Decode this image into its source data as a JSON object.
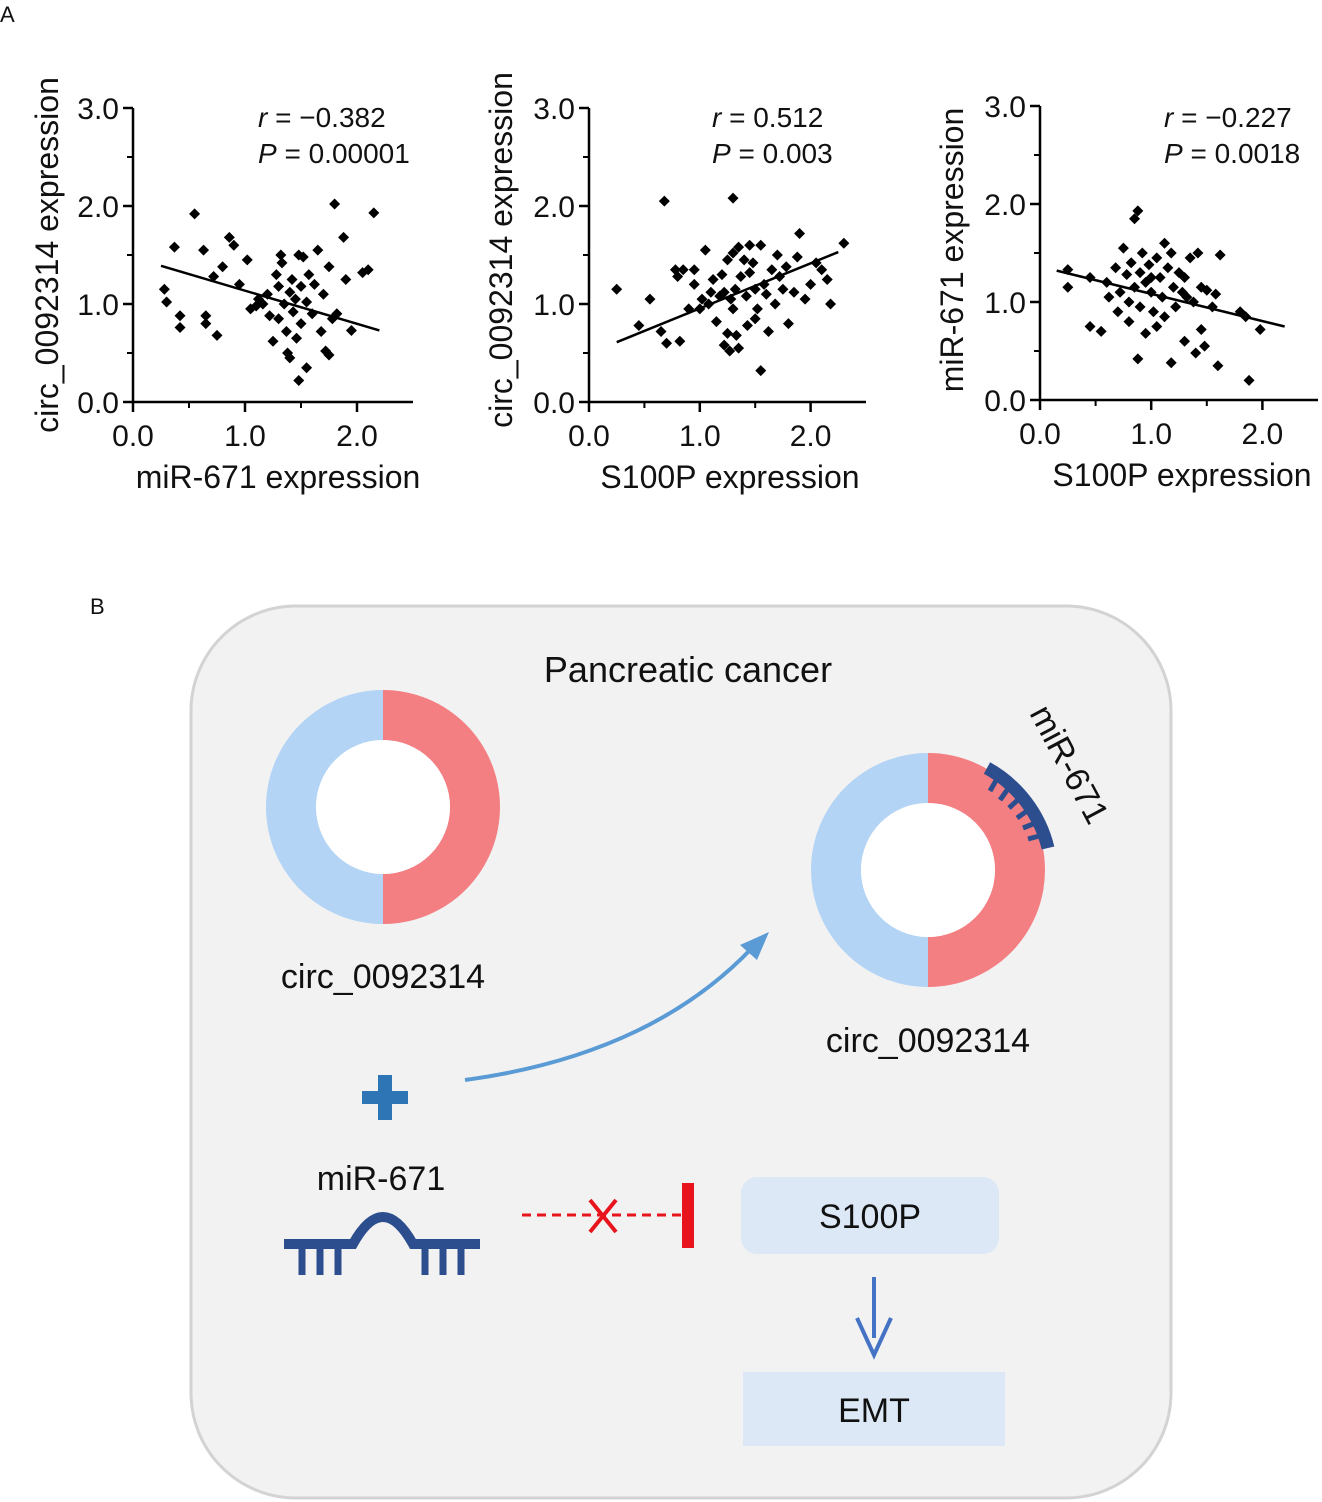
{
  "panel_labels": {
    "a": "A",
    "b": "B"
  },
  "chart_data": [
    {
      "type": "scatter",
      "title": "",
      "xlabel": "miR-671 expression",
      "ylabel": "circ_0092314 expression",
      "xlim": [
        0,
        2.5
      ],
      "ylim": [
        0,
        3
      ],
      "xticks": [
        "0.0",
        "1.0",
        "2.0"
      ],
      "yticks": [
        "0.0",
        "1.0",
        "2.0",
        "3.0"
      ],
      "r_label": "r",
      "r_value": "= −0.382",
      "p_label": "P",
      "p_value": "= 0.00001",
      "fit": {
        "x": [
          0.25,
          2.2
        ],
        "y": [
          1.39,
          0.73
        ]
      },
      "points": [
        [
          0.28,
          1.15
        ],
        [
          0.3,
          1.02
        ],
        [
          0.37,
          1.58
        ],
        [
          0.42,
          0.88
        ],
        [
          0.42,
          0.76
        ],
        [
          0.55,
          1.92
        ],
        [
          0.63,
          1.55
        ],
        [
          0.65,
          0.88
        ],
        [
          0.65,
          0.8
        ],
        [
          0.72,
          1.28
        ],
        [
          0.75,
          0.68
        ],
        [
          0.8,
          1.38
        ],
        [
          0.86,
          1.68
        ],
        [
          0.9,
          1.6
        ],
        [
          0.95,
          1.2
        ],
        [
          1.02,
          1.45
        ],
        [
          1.05,
          0.95
        ],
        [
          1.1,
          0.98
        ],
        [
          1.12,
          1.05
        ],
        [
          1.16,
          1.0
        ],
        [
          1.2,
          1.1
        ],
        [
          1.22,
          0.88
        ],
        [
          1.25,
          0.62
        ],
        [
          1.28,
          1.3
        ],
        [
          1.3,
          1.18
        ],
        [
          1.3,
          0.85
        ],
        [
          1.32,
          1.5
        ],
        [
          1.33,
          1.42
        ],
        [
          1.35,
          1.0
        ],
        [
          1.37,
          0.72
        ],
        [
          1.38,
          0.5
        ],
        [
          1.4,
          1.12
        ],
        [
          1.4,
          0.45
        ],
        [
          1.42,
          1.25
        ],
        [
          1.43,
          0.92
        ],
        [
          1.45,
          1.05
        ],
        [
          1.46,
          0.65
        ],
        [
          1.48,
          1.5
        ],
        [
          1.48,
          0.22
        ],
        [
          1.5,
          1.18
        ],
        [
          1.5,
          0.8
        ],
        [
          1.52,
          1.48
        ],
        [
          1.55,
          1.02
        ],
        [
          1.55,
          0.35
        ],
        [
          1.57,
          1.3
        ],
        [
          1.6,
          0.9
        ],
        [
          1.62,
          1.2
        ],
        [
          1.65,
          1.55
        ],
        [
          1.68,
          0.72
        ],
        [
          1.7,
          1.1
        ],
        [
          1.72,
          0.52
        ],
        [
          1.75,
          0.48
        ],
        [
          1.75,
          1.38
        ],
        [
          1.78,
          0.85
        ],
        [
          1.8,
          2.02
        ],
        [
          1.82,
          0.9
        ],
        [
          1.88,
          1.68
        ],
        [
          1.9,
          1.25
        ],
        [
          1.95,
          0.73
        ],
        [
          2.05,
          1.32
        ],
        [
          2.1,
          1.35
        ],
        [
          2.15,
          1.93
        ]
      ]
    },
    {
      "type": "scatter",
      "title": "",
      "xlabel": "S100P expression",
      "ylabel": "circ_0092314 expression",
      "xlim": [
        0,
        2.5
      ],
      "ylim": [
        0,
        3
      ],
      "xticks": [
        "0.0",
        "1.0",
        "2.0"
      ],
      "yticks": [
        "0.0",
        "1.0",
        "2.0",
        "3.0"
      ],
      "r_label": "r",
      "r_value": "= 0.512",
      "p_label": "P",
      "p_value": "= 0.003",
      "fit": {
        "x": [
          0.25,
          2.25
        ],
        "y": [
          0.61,
          1.53
        ]
      },
      "points": [
        [
          0.25,
          1.15
        ],
        [
          0.45,
          0.78
        ],
        [
          0.55,
          1.05
        ],
        [
          0.65,
          0.72
        ],
        [
          0.68,
          2.05
        ],
        [
          0.7,
          0.6
        ],
        [
          0.78,
          1.35
        ],
        [
          0.8,
          1.28
        ],
        [
          0.82,
          0.62
        ],
        [
          0.85,
          1.35
        ],
        [
          0.9,
          0.95
        ],
        [
          0.95,
          1.2
        ],
        [
          0.95,
          1.35
        ],
        [
          1.0,
          0.95
        ],
        [
          1.02,
          1.05
        ],
        [
          1.05,
          1.55
        ],
        [
          1.08,
          1.0
        ],
        [
          1.1,
          1.12
        ],
        [
          1.12,
          1.25
        ],
        [
          1.15,
          0.82
        ],
        [
          1.18,
          1.08
        ],
        [
          1.2,
          1.3
        ],
        [
          1.22,
          1.12
        ],
        [
          1.22,
          0.58
        ],
        [
          1.25,
          1.45
        ],
        [
          1.25,
          0.7
        ],
        [
          1.27,
          0.52
        ],
        [
          1.28,
          1.05
        ],
        [
          1.3,
          2.08
        ],
        [
          1.3,
          1.52
        ],
        [
          1.3,
          0.95
        ],
        [
          1.32,
          1.15
        ],
        [
          1.33,
          0.68
        ],
        [
          1.35,
          1.58
        ],
        [
          1.35,
          0.55
        ],
        [
          1.37,
          1.28
        ],
        [
          1.4,
          1.45
        ],
        [
          1.42,
          1.08
        ],
        [
          1.43,
          0.78
        ],
        [
          1.45,
          1.6
        ],
        [
          1.45,
          1.32
        ],
        [
          1.48,
          1.42
        ],
        [
          1.5,
          1.15
        ],
        [
          1.5,
          0.85
        ],
        [
          1.52,
          0.95
        ],
        [
          1.55,
          0.32
        ],
        [
          1.55,
          1.6
        ],
        [
          1.58,
          1.2
        ],
        [
          1.6,
          1.1
        ],
        [
          1.62,
          0.72
        ],
        [
          1.65,
          1.35
        ],
        [
          1.68,
          1.0
        ],
        [
          1.72,
          1.28
        ],
        [
          1.75,
          1.15
        ],
        [
          1.78,
          1.38
        ],
        [
          1.8,
          0.8
        ],
        [
          1.85,
          1.12
        ],
        [
          1.88,
          1.48
        ],
        [
          1.9,
          1.72
        ],
        [
          2.0,
          1.2
        ],
        [
          2.05,
          1.42
        ],
        [
          2.1,
          1.35
        ],
        [
          2.15,
          1.25
        ],
        [
          2.18,
          1.0
        ],
        [
          2.3,
          1.62
        ],
        [
          1.7,
          1.5
        ],
        [
          1.95,
          1.05
        ]
      ]
    },
    {
      "type": "scatter",
      "title": "",
      "xlabel": "S100P expression",
      "ylabel": "miR-671 expression",
      "xlim": [
        0,
        2.5
      ],
      "ylim": [
        0,
        3
      ],
      "xticks": [
        "0.0",
        "1.0",
        "2.0"
      ],
      "yticks": [
        "0.0",
        "1.0",
        "2.0",
        "3.0"
      ],
      "r_label": "r",
      "r_value": "= −0.227",
      "p_label": "P",
      "p_value": "= 0.0018",
      "fit": {
        "x": [
          0.15,
          2.2
        ],
        "y": [
          1.32,
          0.75
        ]
      },
      "points": [
        [
          0.25,
          1.33
        ],
        [
          0.25,
          1.15
        ],
        [
          0.45,
          1.25
        ],
        [
          0.45,
          0.75
        ],
        [
          0.55,
          0.7
        ],
        [
          0.6,
          1.2
        ],
        [
          0.62,
          1.05
        ],
        [
          0.68,
          1.35
        ],
        [
          0.7,
          0.9
        ],
        [
          0.72,
          1.1
        ],
        [
          0.75,
          1.55
        ],
        [
          0.78,
          1.28
        ],
        [
          0.8,
          1.0
        ],
        [
          0.8,
          0.8
        ],
        [
          0.82,
          1.4
        ],
        [
          0.85,
          1.85
        ],
        [
          0.85,
          1.15
        ],
        [
          0.88,
          1.93
        ],
        [
          0.88,
          0.42
        ],
        [
          0.9,
          1.3
        ],
        [
          0.9,
          0.95
        ],
        [
          0.92,
          1.5
        ],
        [
          0.95,
          1.2
        ],
        [
          0.95,
          0.68
        ],
        [
          0.98,
          1.38
        ],
        [
          1.0,
          1.1
        ],
        [
          1.02,
          0.9
        ],
        [
          1.05,
          1.45
        ],
        [
          1.05,
          0.75
        ],
        [
          1.08,
          1.25
        ],
        [
          1.1,
          1.05
        ],
        [
          1.12,
          1.6
        ],
        [
          1.12,
          0.85
        ],
        [
          1.15,
          1.35
        ],
        [
          1.18,
          1.5
        ],
        [
          1.18,
          0.38
        ],
        [
          1.2,
          1.15
        ],
        [
          1.22,
          0.95
        ],
        [
          1.25,
          1.3
        ],
        [
          1.28,
          1.1
        ],
        [
          1.3,
          0.6
        ],
        [
          1.32,
          1.05
        ],
        [
          1.35,
          1.45
        ],
        [
          1.38,
          1.0
        ],
        [
          1.4,
          0.48
        ],
        [
          1.42,
          1.5
        ],
        [
          1.45,
          1.15
        ],
        [
          1.45,
          0.72
        ],
        [
          1.48,
          0.55
        ],
        [
          1.5,
          1.12
        ],
        [
          1.55,
          0.95
        ],
        [
          1.58,
          1.08
        ],
        [
          1.6,
          0.35
        ],
        [
          1.62,
          1.48
        ],
        [
          1.8,
          0.9
        ],
        [
          1.85,
          0.85
        ],
        [
          1.88,
          0.2
        ],
        [
          1.98,
          0.72
        ],
        [
          1.0,
          1.25
        ],
        [
          1.3,
          1.25
        ]
      ]
    }
  ],
  "diagram": {
    "cell_label": "Pancreatic cancer",
    "circ_left_label": "circ_0092314",
    "circ_right_label": "circ_0092314",
    "mirna_bound_label": "miR-671",
    "mirna_free_label": "miR-671",
    "target_label": "S100P",
    "outcome_label": "EMT",
    "colors": {
      "cell_fill": "#f2f2f2",
      "cell_border": "#d3d3d3",
      "ring_blue": "#b3d4f5",
      "ring_red": "#f47f83",
      "mirna": "#2d4e8e",
      "arrow": "#5b9bd5",
      "plus": "#2e75b6",
      "inhibit": "#e8141b",
      "box_fill": "#dce8f5",
      "down_arrow": "#4472c4"
    }
  }
}
